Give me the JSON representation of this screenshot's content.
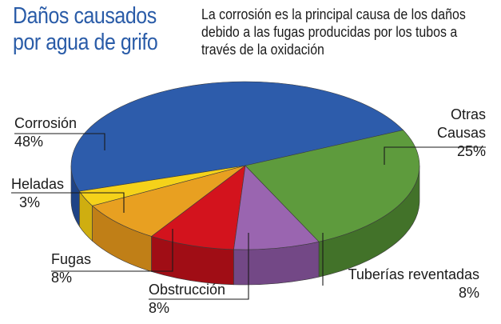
{
  "chart_data": {
    "type": "pie",
    "title": "Daños causados por agua de grifo",
    "subtitle": "La corrosión es la principal causa de los daños debido a las fugas producidas por los tubos a través de la oxidación",
    "slices": [
      {
        "label": "Corrosión",
        "value": 48,
        "value_label": "48%",
        "color": "#2d5cab",
        "side_color": "#1f4386"
      },
      {
        "label": "Heladas",
        "value": 3,
        "value_label": "3%",
        "color": "#f5d21a",
        "side_color": "#cfae10"
      },
      {
        "label": "Fugas",
        "value": 8,
        "value_label": "8%",
        "color": "#e8a021",
        "side_color": "#c07f17"
      },
      {
        "label": "Obstrucción",
        "value": 8,
        "value_label": "8%",
        "color": "#d3131d",
        "side_color": "#a00d15"
      },
      {
        "label": "Tuberías reventadas",
        "value": 8,
        "value_label": "8%",
        "color": "#9a65b0",
        "side_color": "#734886"
      },
      {
        "label": "Otras Causas",
        "label_lines": [
          "Otras",
          "Causas"
        ],
        "value": 25,
        "value_label": "25%",
        "color": "#5e9b3d",
        "side_color": "#427229"
      }
    ],
    "legend": "none"
  }
}
